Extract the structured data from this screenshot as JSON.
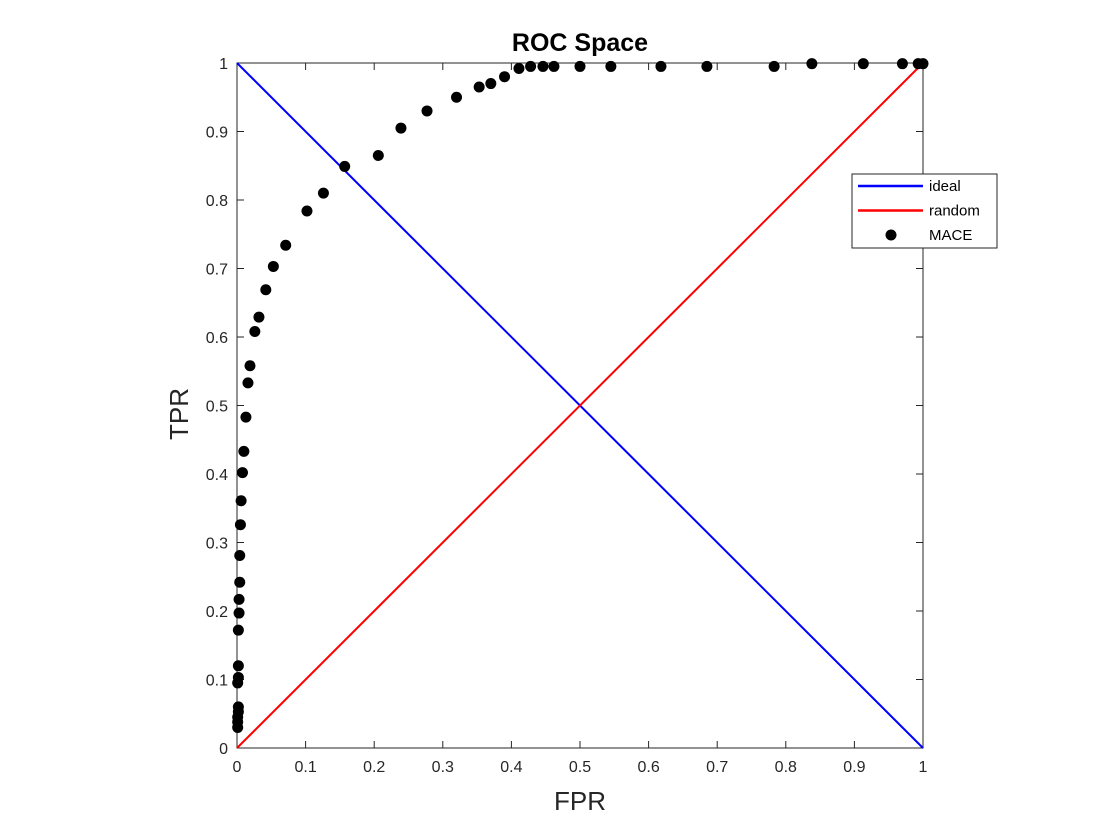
{
  "chart_data": {
    "type": "line",
    "title": "ROC Space",
    "xlabel": "FPR",
    "ylabel": "TPR",
    "xlim": [
      0,
      1
    ],
    "ylim": [
      0,
      1
    ],
    "xticks": [
      "0",
      "0.1",
      "0.2",
      "0.3",
      "0.4",
      "0.5",
      "0.6",
      "0.7",
      "0.8",
      "0.9",
      "1"
    ],
    "yticks": [
      "0",
      "0.1",
      "0.2",
      "0.3",
      "0.4",
      "0.5",
      "0.6",
      "0.7",
      "0.8",
      "0.9",
      "1"
    ],
    "grid": false,
    "legend_position": "upper-right",
    "series": [
      {
        "name": "ideal",
        "kind": "line",
        "color": "#0000ff",
        "points": [
          [
            0,
            1
          ],
          [
            1,
            0
          ]
        ]
      },
      {
        "name": "random",
        "kind": "line",
        "color": "#ff0000",
        "points": [
          [
            0,
            0
          ],
          [
            1,
            1
          ]
        ]
      },
      {
        "name": "MACE",
        "kind": "scatter",
        "color": "#000000",
        "points": [
          [
            0.001,
            0.03
          ],
          [
            0.001,
            0.038
          ],
          [
            0.001,
            0.045
          ],
          [
            0.002,
            0.053
          ],
          [
            0.002,
            0.06
          ],
          [
            0.001,
            0.095
          ],
          [
            0.002,
            0.103
          ],
          [
            0.002,
            0.12
          ],
          [
            0.002,
            0.172
          ],
          [
            0.003,
            0.197
          ],
          [
            0.003,
            0.217
          ],
          [
            0.004,
            0.242
          ],
          [
            0.004,
            0.281
          ],
          [
            0.005,
            0.326
          ],
          [
            0.006,
            0.361
          ],
          [
            0.008,
            0.402
          ],
          [
            0.01,
            0.433
          ],
          [
            0.013,
            0.483
          ],
          [
            0.016,
            0.533
          ],
          [
            0.019,
            0.558
          ],
          [
            0.026,
            0.608
          ],
          [
            0.032,
            0.629
          ],
          [
            0.042,
            0.669
          ],
          [
            0.053,
            0.703
          ],
          [
            0.071,
            0.734
          ],
          [
            0.102,
            0.784
          ],
          [
            0.126,
            0.81
          ],
          [
            0.157,
            0.849
          ],
          [
            0.206,
            0.865
          ],
          [
            0.239,
            0.905
          ],
          [
            0.277,
            0.93
          ],
          [
            0.32,
            0.95
          ],
          [
            0.353,
            0.965
          ],
          [
            0.37,
            0.97
          ],
          [
            0.39,
            0.98
          ],
          [
            0.411,
            0.992
          ],
          [
            0.428,
            0.995
          ],
          [
            0.446,
            0.995
          ],
          [
            0.462,
            0.995
          ],
          [
            0.5,
            0.995
          ],
          [
            0.545,
            0.995
          ],
          [
            0.618,
            0.995
          ],
          [
            0.685,
            0.995
          ],
          [
            0.783,
            0.995
          ],
          [
            0.838,
            0.999
          ],
          [
            0.913,
            0.999
          ],
          [
            0.97,
            0.999
          ],
          [
            0.993,
            0.999
          ],
          [
            1.0,
            0.999
          ]
        ]
      }
    ]
  }
}
